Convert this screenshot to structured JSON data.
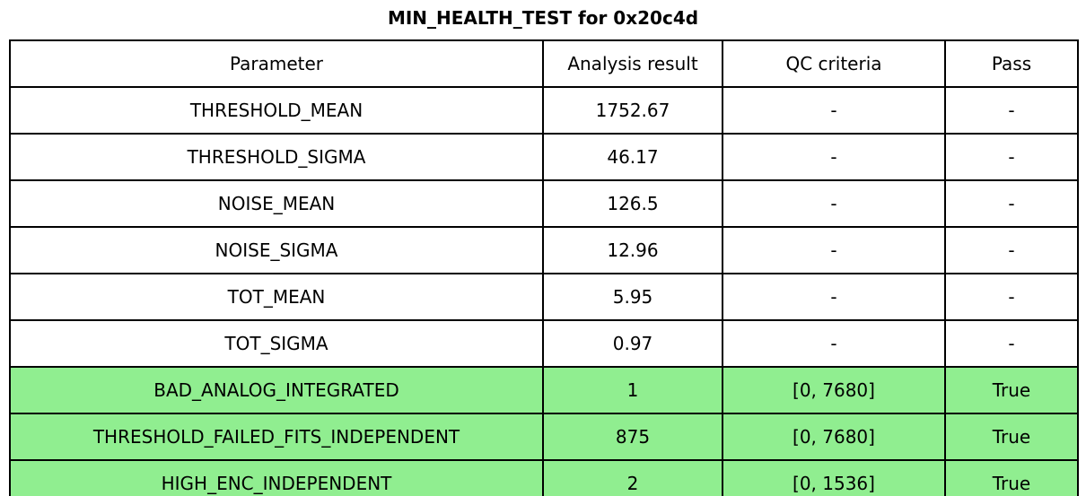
{
  "title": "MIN_HEALTH_TEST for 0x20c4d",
  "colors": {
    "highlight_row_bg": "#90EE90",
    "default_row_bg": "#FFFFFF",
    "border": "#000000",
    "text": "#000000"
  },
  "chart_data": {
    "type": "table",
    "title": "MIN_HEALTH_TEST for 0x20c4d",
    "columns": [
      "Parameter",
      "Analysis result",
      "QC criteria",
      "Pass"
    ],
    "rows": [
      [
        "THRESHOLD_MEAN",
        "1752.67",
        "-",
        "-"
      ],
      [
        "THRESHOLD_SIGMA",
        "46.17",
        "-",
        "-"
      ],
      [
        "NOISE_MEAN",
        "126.5",
        "-",
        "-"
      ],
      [
        "NOISE_SIGMA",
        "12.96",
        "-",
        "-"
      ],
      [
        "TOT_MEAN",
        "5.95",
        "-",
        "-"
      ],
      [
        "TOT_SIGMA",
        "0.97",
        "-",
        "-"
      ],
      [
        "BAD_ANALOG_INTEGRATED",
        "1",
        "[0, 7680]",
        "True"
      ],
      [
        "THRESHOLD_FAILED_FITS_INDEPENDENT",
        "875",
        "[0, 7680]",
        "True"
      ],
      [
        "HIGH_ENC_INDEPENDENT",
        "2",
        "[0, 1536]",
        "True"
      ]
    ],
    "highlighted_rows": [
      6,
      7,
      8
    ],
    "highlight_color": "#90EE90",
    "legend_position": "none",
    "grid": "full-borders"
  }
}
